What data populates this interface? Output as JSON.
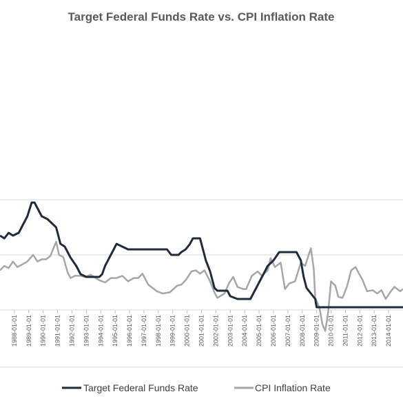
{
  "chart_data": {
    "type": "line",
    "title": "Target Federal Funds Rate vs. CPI Inflation Rate",
    "xlabel": "",
    "ylabel": "",
    "ylim": [
      0,
      14
    ],
    "grid": true,
    "legend_position": "bottom",
    "x_tick_labels": [
      "1988-01-01",
      "1989-01-01",
      "1990-01-01",
      "1991-01-01",
      "1992-01-01",
      "1993-01-01",
      "1994-01-01",
      "1995-01-01",
      "1996-01-01",
      "1997-01-01",
      "1998-01-01",
      "1999-01-01",
      "2000-01-01",
      "2001-01-01",
      "2002-01-01",
      "2003-01-01",
      "2004-01-01",
      "2005-01-01",
      "2006-01-01",
      "2007-01-01",
      "2008-01-01",
      "2009-01-01",
      "2010-01-01",
      "2011-01-01",
      "2012-01-01",
      "2013-01-01",
      "2014-01-01"
    ],
    "series": [
      {
        "name": "Target Federal Funds Rate",
        "color": "#1f2a3a",
        "points": [
          [
            1987.0,
            6.75
          ],
          [
            1987.3,
            6.5
          ],
          [
            1987.6,
            7.0
          ],
          [
            1987.9,
            6.75
          ],
          [
            1988.3,
            7.0
          ],
          [
            1988.6,
            7.75
          ],
          [
            1988.9,
            8.5
          ],
          [
            1989.2,
            9.75
          ],
          [
            1989.4,
            9.75
          ],
          [
            1989.6,
            9.25
          ],
          [
            1989.9,
            8.5
          ],
          [
            1990.3,
            8.25
          ],
          [
            1990.9,
            7.5
          ],
          [
            1991.2,
            6.0
          ],
          [
            1991.5,
            5.75
          ],
          [
            1991.9,
            4.75
          ],
          [
            1992.3,
            4.0
          ],
          [
            1992.6,
            3.25
          ],
          [
            1993.0,
            3.0
          ],
          [
            1993.9,
            3.0
          ],
          [
            1994.1,
            3.25
          ],
          [
            1994.3,
            4.0
          ],
          [
            1994.6,
            4.75
          ],
          [
            1994.9,
            5.5
          ],
          [
            1995.1,
            6.0
          ],
          [
            1995.5,
            5.75
          ],
          [
            1995.9,
            5.5
          ],
          [
            1996.9,
            5.5
          ],
          [
            1997.2,
            5.5
          ],
          [
            1998.6,
            5.5
          ],
          [
            1998.9,
            5.0
          ],
          [
            1999.4,
            5.0
          ],
          [
            1999.6,
            5.25
          ],
          [
            1999.9,
            5.5
          ],
          [
            2000.2,
            6.0
          ],
          [
            2000.4,
            6.5
          ],
          [
            2000.9,
            6.5
          ],
          [
            2001.1,
            5.5
          ],
          [
            2001.3,
            4.5
          ],
          [
            2001.6,
            3.5
          ],
          [
            2001.9,
            2.0
          ],
          [
            2002.1,
            1.75
          ],
          [
            2002.8,
            1.75
          ],
          [
            2003.0,
            1.25
          ],
          [
            2003.5,
            1.0
          ],
          [
            2004.4,
            1.0
          ],
          [
            2004.8,
            2.0
          ],
          [
            2005.2,
            3.0
          ],
          [
            2005.6,
            4.0
          ],
          [
            2006.0,
            4.5
          ],
          [
            2006.4,
            5.25
          ],
          [
            2007.6,
            5.25
          ],
          [
            2007.9,
            4.5
          ],
          [
            2008.1,
            3.0
          ],
          [
            2008.3,
            2.0
          ],
          [
            2008.9,
            1.0
          ],
          [
            2009.0,
            0.25
          ],
          [
            2015.0,
            0.25
          ]
        ]
      },
      {
        "name": "CPI Inflation Rate",
        "color": "#a6a6a6",
        "points": [
          [
            1987.0,
            3.6
          ],
          [
            1987.3,
            4.0
          ],
          [
            1987.6,
            3.8
          ],
          [
            1987.9,
            4.4
          ],
          [
            1988.2,
            3.9
          ],
          [
            1988.5,
            4.1
          ],
          [
            1988.9,
            4.4
          ],
          [
            1989.3,
            5.0
          ],
          [
            1989.6,
            4.4
          ],
          [
            1989.9,
            4.6
          ],
          [
            1990.2,
            4.6
          ],
          [
            1990.5,
            4.9
          ],
          [
            1990.9,
            6.2
          ],
          [
            1991.1,
            5.0
          ],
          [
            1991.4,
            4.8
          ],
          [
            1991.7,
            3.4
          ],
          [
            1991.9,
            2.9
          ],
          [
            1992.2,
            3.1
          ],
          [
            1992.6,
            3.1
          ],
          [
            1992.9,
            3.0
          ],
          [
            1993.3,
            3.2
          ],
          [
            1993.9,
            2.7
          ],
          [
            1994.3,
            2.5
          ],
          [
            1994.7,
            2.9
          ],
          [
            1995.1,
            2.9
          ],
          [
            1995.5,
            3.1
          ],
          [
            1995.9,
            2.6
          ],
          [
            1996.3,
            2.9
          ],
          [
            1996.6,
            2.9
          ],
          [
            1996.9,
            3.3
          ],
          [
            1997.3,
            2.3
          ],
          [
            1997.9,
            1.7
          ],
          [
            1998.3,
            1.5
          ],
          [
            1998.8,
            1.6
          ],
          [
            1999.3,
            2.2
          ],
          [
            1999.6,
            2.3
          ],
          [
            1999.9,
            2.7
          ],
          [
            2000.3,
            3.5
          ],
          [
            2000.6,
            3.6
          ],
          [
            2000.9,
            3.3
          ],
          [
            2001.2,
            3.6
          ],
          [
            2001.6,
            2.6
          ],
          [
            2001.9,
            1.6
          ],
          [
            2002.1,
            1.1
          ],
          [
            2002.6,
            1.5
          ],
          [
            2002.9,
            2.4
          ],
          [
            2003.2,
            3.0
          ],
          [
            2003.5,
            2.1
          ],
          [
            2003.9,
            1.9
          ],
          [
            2004.1,
            1.9
          ],
          [
            2004.5,
            3.1
          ],
          [
            2004.9,
            3.5
          ],
          [
            2005.2,
            3.1
          ],
          [
            2005.6,
            3.6
          ],
          [
            2005.8,
            4.7
          ],
          [
            2006.1,
            3.9
          ],
          [
            2006.5,
            4.3
          ],
          [
            2006.8,
            1.9
          ],
          [
            2007.1,
            2.4
          ],
          [
            2007.5,
            2.6
          ],
          [
            2007.9,
            4.3
          ],
          [
            2008.2,
            4.0
          ],
          [
            2008.6,
            5.6
          ],
          [
            2008.8,
            3.7
          ],
          [
            2008.9,
            1.1
          ],
          [
            2009.2,
            0.2
          ],
          [
            2009.4,
            -1.3
          ],
          [
            2009.6,
            -1.9
          ],
          [
            2009.8,
            -0.2
          ],
          [
            2010.0,
            2.6
          ],
          [
            2010.3,
            2.2
          ],
          [
            2010.5,
            1.2
          ],
          [
            2010.8,
            1.1
          ],
          [
            2011.1,
            2.1
          ],
          [
            2011.4,
            3.6
          ],
          [
            2011.7,
            3.9
          ],
          [
            2011.9,
            3.4
          ],
          [
            2012.2,
            2.7
          ],
          [
            2012.5,
            1.7
          ],
          [
            2012.9,
            1.8
          ],
          [
            2013.2,
            1.5
          ],
          [
            2013.5,
            1.8
          ],
          [
            2013.8,
            1.0
          ],
          [
            2014.1,
            1.6
          ],
          [
            2014.4,
            2.1
          ],
          [
            2014.8,
            1.7
          ],
          [
            2015.0,
            1.9
          ]
        ]
      }
    ]
  }
}
